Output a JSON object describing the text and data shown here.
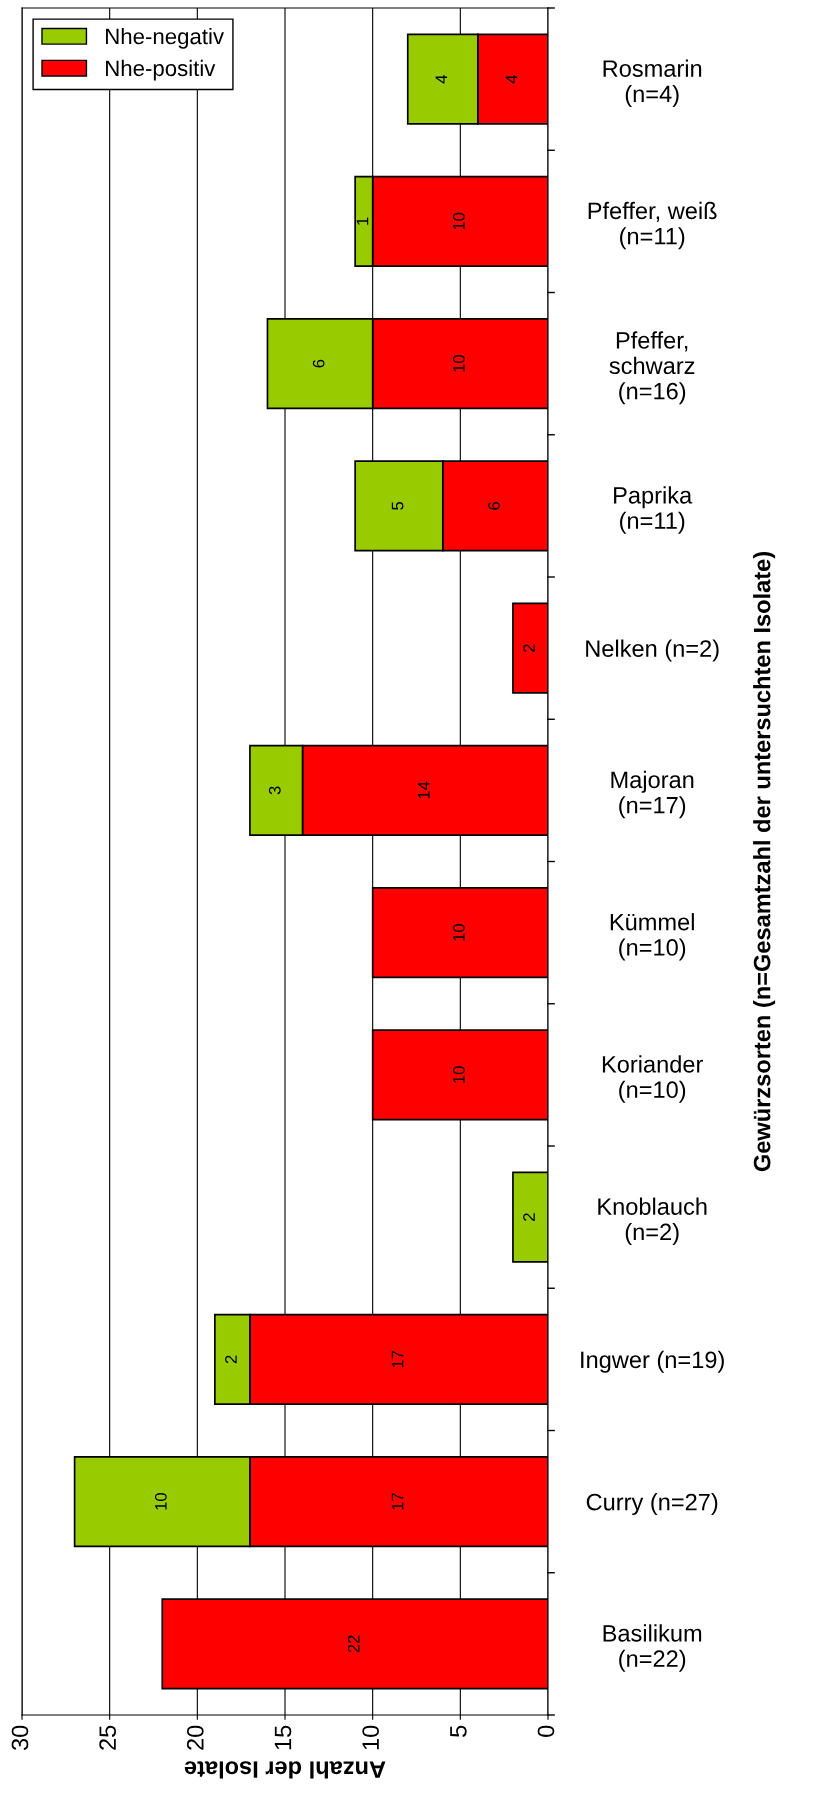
{
  "chart_data": {
    "type": "bar",
    "orientation": "horizontal",
    "stacked": true,
    "xlabel": "Anzahl der Isolate",
    "ylabel": "Gewürzsorten (n=Gesamtzahl der untersuchten Isolate)",
    "categories": [
      "Rosmarin\n(n=4)",
      "Pfeffer, weiß\n(n=11)",
      "Pfeffer,\nschwarz\n(n=16)",
      "Paprika\n(n=11)",
      "Nelken (n=2)",
      "Majoran\n(n=17)",
      "Kümmel\n(n=10)",
      "Koriander\n(n=10)",
      "Knoblauch\n(n=2)",
      "Ingwer (n=19)",
      "Curry (n=27)",
      "Basilikum\n(n=22)"
    ],
    "series": [
      {
        "name": "Nhe-positiv",
        "color": "#ff0000",
        "values": [
          4,
          10,
          10,
          6,
          2,
          14,
          10,
          10,
          null,
          17,
          17,
          22
        ]
      },
      {
        "name": "Nhe-negativ",
        "color": "#99cc00",
        "values": [
          4,
          1,
          6,
          5,
          null,
          3,
          null,
          null,
          2,
          2,
          10,
          null
        ]
      }
    ],
    "xlim": [
      30,
      0
    ],
    "xticks": [
      30,
      25,
      20,
      15,
      10,
      5,
      0
    ],
    "grid": "x",
    "legend": "top left",
    "data_labels": true
  }
}
